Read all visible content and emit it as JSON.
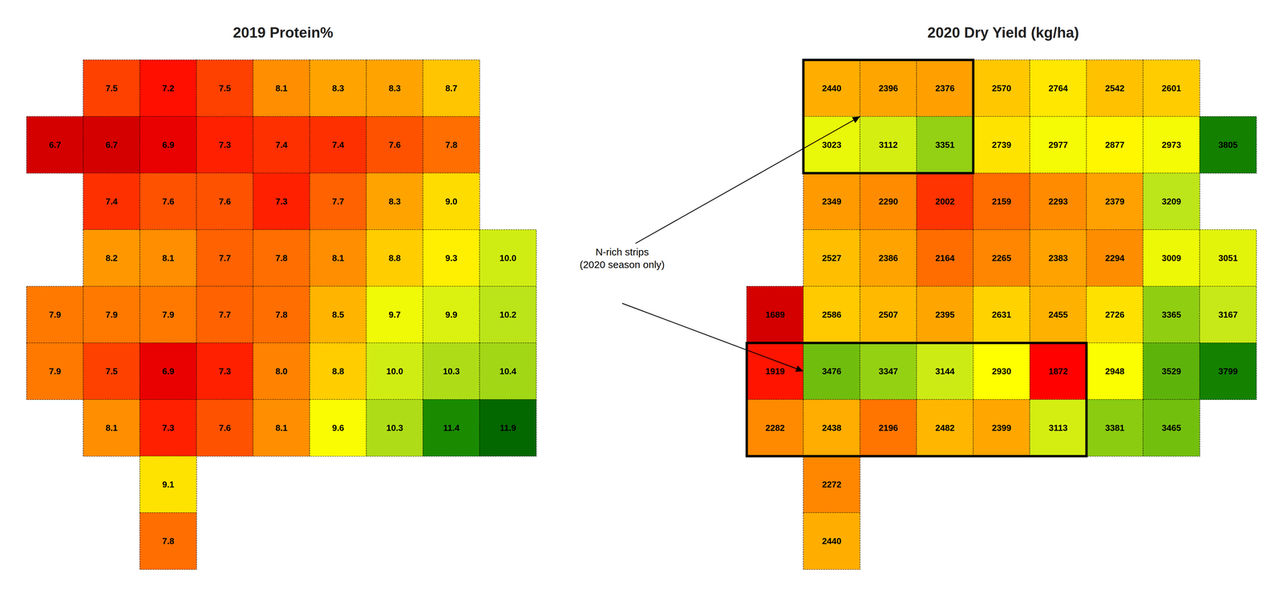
{
  "chart_data": [
    {
      "type": "heatmap",
      "title": "2019 Protein%",
      "cells": [
        {
          "row": 0,
          "col": 1,
          "value": 7.5
        },
        {
          "row": 0,
          "col": 2,
          "value": 7.2
        },
        {
          "row": 0,
          "col": 3,
          "value": 7.5
        },
        {
          "row": 0,
          "col": 4,
          "value": 8.1
        },
        {
          "row": 0,
          "col": 5,
          "value": 8.3
        },
        {
          "row": 0,
          "col": 6,
          "value": 8.3
        },
        {
          "row": 0,
          "col": 7,
          "value": 8.7
        },
        {
          "row": 1,
          "col": 0,
          "value": 6.7
        },
        {
          "row": 1,
          "col": 1,
          "value": 6.7
        },
        {
          "row": 1,
          "col": 2,
          "value": 6.9
        },
        {
          "row": 1,
          "col": 3,
          "value": 7.3
        },
        {
          "row": 1,
          "col": 4,
          "value": 7.4
        },
        {
          "row": 1,
          "col": 5,
          "value": 7.4
        },
        {
          "row": 1,
          "col": 6,
          "value": 7.6
        },
        {
          "row": 1,
          "col": 7,
          "value": 7.8
        },
        {
          "row": 2,
          "col": 1,
          "value": 7.4
        },
        {
          "row": 2,
          "col": 2,
          "value": 7.6
        },
        {
          "row": 2,
          "col": 3,
          "value": 7.6
        },
        {
          "row": 2,
          "col": 4,
          "value": 7.3
        },
        {
          "row": 2,
          "col": 5,
          "value": 7.7
        },
        {
          "row": 2,
          "col": 6,
          "value": 8.3
        },
        {
          "row": 2,
          "col": 7,
          "value": 9.0,
          "label": "9.0"
        },
        {
          "row": 3,
          "col": 1,
          "value": 8.2
        },
        {
          "row": 3,
          "col": 2,
          "value": 8.1
        },
        {
          "row": 3,
          "col": 3,
          "value": 7.7
        },
        {
          "row": 3,
          "col": 4,
          "value": 7.8
        },
        {
          "row": 3,
          "col": 5,
          "value": 8.1
        },
        {
          "row": 3,
          "col": 6,
          "value": 8.8
        },
        {
          "row": 3,
          "col": 7,
          "value": 9.3
        },
        {
          "row": 3,
          "col": 8,
          "value": 10.0,
          "label": "10.0"
        },
        {
          "row": 4,
          "col": 0,
          "value": 7.9
        },
        {
          "row": 4,
          "col": 1,
          "value": 7.9
        },
        {
          "row": 4,
          "col": 2,
          "value": 7.9
        },
        {
          "row": 4,
          "col": 3,
          "value": 7.7
        },
        {
          "row": 4,
          "col": 4,
          "value": 7.8
        },
        {
          "row": 4,
          "col": 5,
          "value": 8.5
        },
        {
          "row": 4,
          "col": 6,
          "value": 9.7
        },
        {
          "row": 4,
          "col": 7,
          "value": 9.9
        },
        {
          "row": 4,
          "col": 8,
          "value": 10.2
        },
        {
          "row": 5,
          "col": 0,
          "value": 7.9
        },
        {
          "row": 5,
          "col": 1,
          "value": 7.5
        },
        {
          "row": 5,
          "col": 2,
          "value": 6.9
        },
        {
          "row": 5,
          "col": 3,
          "value": 7.3
        },
        {
          "row": 5,
          "col": 4,
          "value": 8.0,
          "label": "8.0"
        },
        {
          "row": 5,
          "col": 5,
          "value": 8.8
        },
        {
          "row": 5,
          "col": 6,
          "value": 10.0,
          "label": "10.0"
        },
        {
          "row": 5,
          "col": 7,
          "value": 10.3
        },
        {
          "row": 5,
          "col": 8,
          "value": 10.4
        },
        {
          "row": 6,
          "col": 1,
          "value": 8.1
        },
        {
          "row": 6,
          "col": 2,
          "value": 7.3
        },
        {
          "row": 6,
          "col": 3,
          "value": 7.6
        },
        {
          "row": 6,
          "col": 4,
          "value": 8.1
        },
        {
          "row": 6,
          "col": 5,
          "value": 9.6
        },
        {
          "row": 6,
          "col": 6,
          "value": 10.3
        },
        {
          "row": 6,
          "col": 7,
          "value": 11.4
        },
        {
          "row": 6,
          "col": 8,
          "value": 11.9
        },
        {
          "row": 7,
          "col": 2,
          "value": 9.1
        },
        {
          "row": 8,
          "col": 2,
          "value": 7.8
        }
      ],
      "color_range": [
        6.5,
        12.0
      ],
      "color_scale": [
        "#bf0000",
        "#ff0000",
        "#ff6600",
        "#ffa600",
        "#ffd900",
        "#ffff00",
        "#bfe61a",
        "#73bf0d",
        "#1a8c00",
        "#006100"
      ],
      "data_labels": true,
      "tick_labels": false,
      "grid": false
    },
    {
      "type": "heatmap",
      "title": "2020 Dry Yield (kg/ha)",
      "cells": [
        {
          "row": 0,
          "col": 1,
          "value": 2440
        },
        {
          "row": 0,
          "col": 2,
          "value": 2396
        },
        {
          "row": 0,
          "col": 3,
          "value": 2376
        },
        {
          "row": 0,
          "col": 4,
          "value": 2570
        },
        {
          "row": 0,
          "col": 5,
          "value": 2764
        },
        {
          "row": 0,
          "col": 6,
          "value": 2542
        },
        {
          "row": 0,
          "col": 7,
          "value": 2601
        },
        {
          "row": 1,
          "col": 1,
          "value": 3023
        },
        {
          "row": 1,
          "col": 2,
          "value": 3112
        },
        {
          "row": 1,
          "col": 3,
          "value": 3351
        },
        {
          "row": 1,
          "col": 4,
          "value": 2739
        },
        {
          "row": 1,
          "col": 5,
          "value": 2977
        },
        {
          "row": 1,
          "col": 6,
          "value": 2877
        },
        {
          "row": 1,
          "col": 7,
          "value": 2973
        },
        {
          "row": 1,
          "col": 8,
          "value": 3805
        },
        {
          "row": 2,
          "col": 1,
          "value": 2349
        },
        {
          "row": 2,
          "col": 2,
          "value": 2290
        },
        {
          "row": 2,
          "col": 3,
          "value": 2002
        },
        {
          "row": 2,
          "col": 4,
          "value": 2159
        },
        {
          "row": 2,
          "col": 5,
          "value": 2293
        },
        {
          "row": 2,
          "col": 6,
          "value": 2379
        },
        {
          "row": 2,
          "col": 7,
          "value": 3209
        },
        {
          "row": 3,
          "col": 1,
          "value": 2527
        },
        {
          "row": 3,
          "col": 2,
          "value": 2386
        },
        {
          "row": 3,
          "col": 3,
          "value": 2164
        },
        {
          "row": 3,
          "col": 4,
          "value": 2265
        },
        {
          "row": 3,
          "col": 5,
          "value": 2383
        },
        {
          "row": 3,
          "col": 6,
          "value": 2294
        },
        {
          "row": 3,
          "col": 7,
          "value": 3009
        },
        {
          "row": 3,
          "col": 8,
          "value": 3051
        },
        {
          "row": 4,
          "col": 0,
          "value": 1689
        },
        {
          "row": 4,
          "col": 1,
          "value": 2586
        },
        {
          "row": 4,
          "col": 2,
          "value": 2507
        },
        {
          "row": 4,
          "col": 3,
          "value": 2395
        },
        {
          "row": 4,
          "col": 4,
          "value": 2631
        },
        {
          "row": 4,
          "col": 5,
          "value": 2455
        },
        {
          "row": 4,
          "col": 6,
          "value": 2726
        },
        {
          "row": 4,
          "col": 7,
          "value": 3365
        },
        {
          "row": 4,
          "col": 8,
          "value": 3167
        },
        {
          "row": 5,
          "col": 0,
          "value": 1919
        },
        {
          "row": 5,
          "col": 1,
          "value": 3476
        },
        {
          "row": 5,
          "col": 2,
          "value": 3347
        },
        {
          "row": 5,
          "col": 3,
          "value": 3144
        },
        {
          "row": 5,
          "col": 4,
          "value": 2930
        },
        {
          "row": 5,
          "col": 5,
          "value": 1872
        },
        {
          "row": 5,
          "col": 6,
          "value": 2948
        },
        {
          "row": 5,
          "col": 7,
          "value": 3529
        },
        {
          "row": 5,
          "col": 8,
          "value": 3799
        },
        {
          "row": 6,
          "col": 0,
          "value": 2282
        },
        {
          "row": 6,
          "col": 1,
          "value": 2438
        },
        {
          "row": 6,
          "col": 2,
          "value": 2196
        },
        {
          "row": 6,
          "col": 3,
          "value": 2482
        },
        {
          "row": 6,
          "col": 4,
          "value": 2399
        },
        {
          "row": 6,
          "col": 5,
          "value": 3113
        },
        {
          "row": 6,
          "col": 6,
          "value": 3381
        },
        {
          "row": 6,
          "col": 7,
          "value": 3465
        },
        {
          "row": 7,
          "col": 1,
          "value": 2272
        },
        {
          "row": 8,
          "col": 1,
          "value": 2440
        }
      ],
      "color_range": [
        1600,
        4000
      ],
      "color_scale": [
        "#bf0000",
        "#ff0000",
        "#ff6600",
        "#ffa600",
        "#ffd900",
        "#ffff00",
        "#bfe61a",
        "#73bf0d",
        "#1a8c00",
        "#006100"
      ],
      "strips": [
        {
          "rows": [
            0,
            1
          ],
          "cols": [
            1,
            2,
            3
          ]
        },
        {
          "rows": [
            5,
            6
          ],
          "cols": [
            0,
            1,
            2,
            3,
            4,
            5
          ]
        }
      ],
      "annotation": "N-rich strips\n(2020 season only)",
      "data_labels": true,
      "tick_labels": false,
      "grid": false
    }
  ]
}
